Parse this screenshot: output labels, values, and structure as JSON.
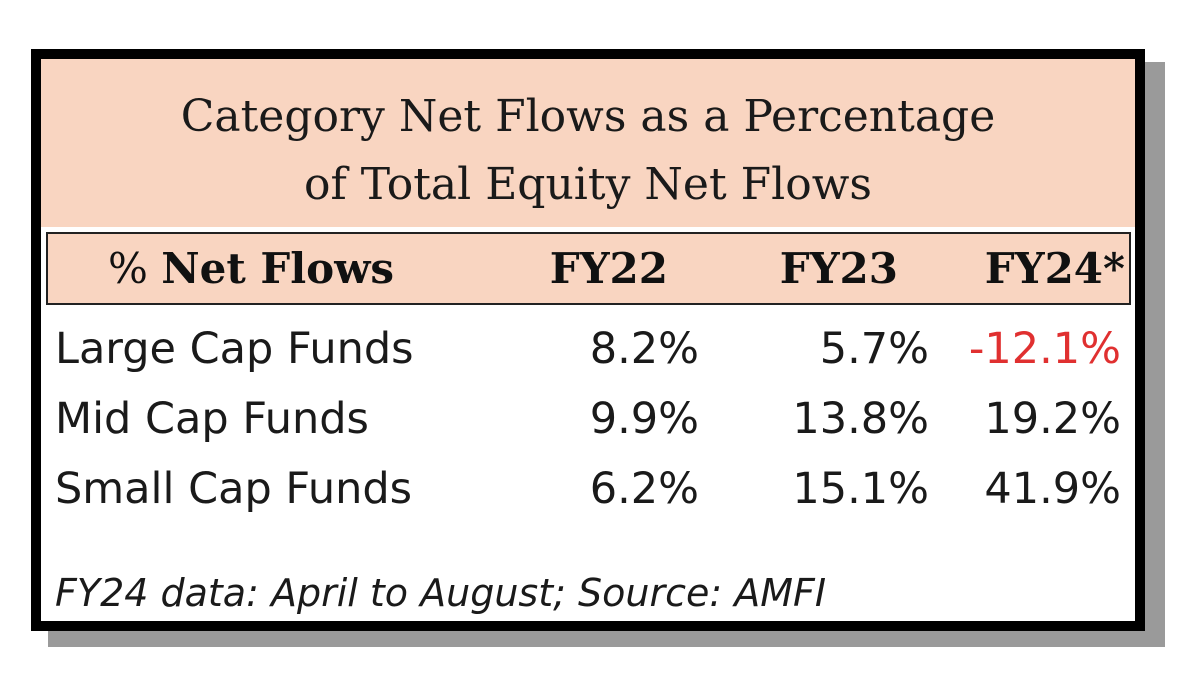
{
  "chart_data": {
    "type": "table",
    "title_lines": [
      "Category Net Flows as a Percentage",
      "of Total Equity Net Flows"
    ],
    "columns": [
      "% Net Flows",
      "FY22",
      "FY23",
      "FY24*"
    ],
    "rows": [
      {
        "label": "Large Cap Funds",
        "values": [
          "8.2%",
          "5.7%",
          "-12.1%"
        ]
      },
      {
        "label": "Mid Cap Funds",
        "values": [
          "9.9%",
          "13.8%",
          "19.2%"
        ]
      },
      {
        "label": "Small Cap Funds",
        "values": [
          "6.2%",
          "15.1%",
          "41.9%"
        ]
      }
    ],
    "footnote": "FY24 data: April to August; Source: AMFI",
    "colors": {
      "header_fill": "#f9d5c1",
      "negative": "#e03030",
      "border": "#000000"
    }
  }
}
